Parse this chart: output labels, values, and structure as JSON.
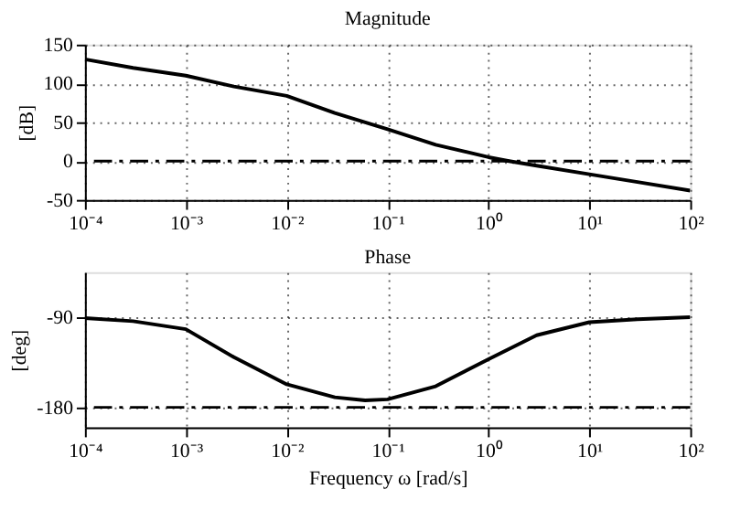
{
  "chart_data": [
    {
      "type": "line",
      "title": "Magnitude",
      "ylabel": "[dB]",
      "log": "x",
      "grid": true,
      "line_style": "solid",
      "marker": "none",
      "xlim": [
        0.0001,
        100
      ],
      "xticks": [
        {
          "value": 0.0001,
          "label": "10⁻⁴"
        },
        {
          "value": 0.001,
          "label": "10⁻³"
        },
        {
          "value": 0.01,
          "label": "10⁻²"
        },
        {
          "value": 0.1,
          "label": "10⁻¹"
        },
        {
          "value": 1,
          "label": "10⁰"
        },
        {
          "value": 10,
          "label": "10¹"
        },
        {
          "value": 100,
          "label": "10²"
        }
      ],
      "ylim": [
        -50,
        150
      ],
      "yticks": [
        -50,
        0,
        50,
        100,
        150
      ],
      "series": [
        {
          "color": "#000000",
          "x": [
            0.0001,
            0.0003,
            0.001,
            0.003,
            0.01,
            0.03,
            0.1,
            0.3,
            1,
            1.6,
            3,
            10,
            30,
            100
          ],
          "values": [
            131,
            120,
            110,
            96,
            84,
            62,
            41,
            21,
            5,
            0,
            -6,
            -17,
            -27,
            -38
          ]
        }
      ],
      "ref_lines": [
        {
          "axis": "y",
          "value": 0,
          "color": "#000000",
          "line_style": "dashed"
        }
      ]
    },
    {
      "type": "line",
      "title": "Phase",
      "xlabel": "Frequency ω [rad/s]",
      "ylabel": "[deg]",
      "log": "x",
      "grid": true,
      "line_style": "solid",
      "marker": "none",
      "xlim": [
        0.0001,
        100
      ],
      "xticks": [
        {
          "value": 0.0001,
          "label": "10⁻⁴"
        },
        {
          "value": 0.001,
          "label": "10⁻³"
        },
        {
          "value": 0.01,
          "label": "10⁻²"
        },
        {
          "value": 0.1,
          "label": "10⁻¹"
        },
        {
          "value": 1,
          "label": "10⁰"
        },
        {
          "value": 10,
          "label": "10¹"
        },
        {
          "value": 100,
          "label": "10²"
        }
      ],
      "ylim": [
        -200,
        -45
      ],
      "yticks": [
        -180,
        -90
      ],
      "series": [
        {
          "color": "#000000",
          "x": [
            0.0001,
            0.0003,
            0.001,
            0.003,
            0.01,
            0.03,
            0.06,
            0.1,
            0.3,
            1,
            3,
            10,
            30,
            100
          ],
          "values": [
            -91,
            -94,
            -102,
            -130,
            -157,
            -170,
            -173,
            -172,
            -159,
            -132,
            -108,
            -95,
            -92,
            -90
          ]
        }
      ],
      "ref_lines": [
        {
          "axis": "y",
          "value": -180,
          "color": "#000000",
          "line_style": "dashed"
        }
      ]
    }
  ]
}
